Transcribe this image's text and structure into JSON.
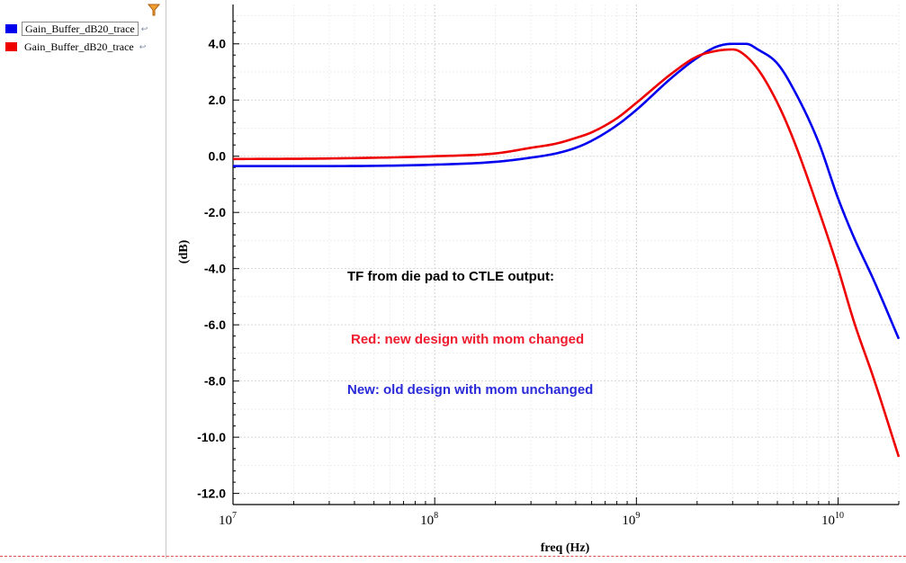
{
  "legend": {
    "items": [
      {
        "label": "Gain_Buffer_dB20_trace",
        "color": "#0000ee",
        "selected": true
      },
      {
        "label": "Gain_Buffer_dB20_trace",
        "color": "#ee0000",
        "selected": false
      }
    ],
    "filter_icon": "filter-icon"
  },
  "chart_data": {
    "type": "line",
    "xlabel": "freq (Hz)",
    "ylabel": "(dB)",
    "x_scale": "log",
    "xlim": [
      10000000.0,
      20000000000.0
    ],
    "ylim": [
      -12.3,
      5.4
    ],
    "y_ticks": [
      4,
      2,
      0,
      -2,
      -4,
      -6,
      -8,
      -10,
      -12
    ],
    "y_tick_labels": [
      "4.0",
      "2.0",
      "0.0",
      "-2.0",
      "-4.0",
      "-6.0",
      "-8.0",
      "-10.0",
      "-12.0"
    ],
    "x_ticks": [
      10000000.0,
      100000000.0,
      1000000000.0,
      10000000000.0
    ],
    "x_tick_labels": [
      {
        "base": "10",
        "exp": "7"
      },
      {
        "base": "10",
        "exp": "8"
      },
      {
        "base": "10",
        "exp": "9"
      },
      {
        "base": "10",
        "exp": "10"
      }
    ],
    "grid": true,
    "series": [
      {
        "color": "#0000ee",
        "x": [
          10000000.0,
          30000000.0,
          100000000.0,
          200000000.0,
          300000000.0,
          400000000.0,
          500000000.0,
          600000000.0,
          800000000.0,
          1000000000.0,
          1500000000.0,
          2000000000.0,
          2500000000.0,
          3000000000.0,
          3500000000.0,
          4000000000.0,
          5000000000.0,
          6000000000.0,
          8000000000.0,
          10000000000.0,
          12000000000.0,
          15000000000.0,
          20000000000.0
        ],
        "y": [
          -0.35,
          -0.35,
          -0.3,
          -0.2,
          -0.05,
          0.1,
          0.3,
          0.55,
          1.1,
          1.65,
          2.8,
          3.5,
          3.9,
          4.0,
          4.0,
          3.8,
          3.3,
          2.4,
          0.5,
          -1.5,
          -2.9,
          -4.4,
          -6.5
        ]
      },
      {
        "color": "#ee0000",
        "x": [
          10000000.0,
          30000000.0,
          100000000.0,
          200000000.0,
          300000000.0,
          400000000.0,
          500000000.0,
          600000000.0,
          800000000.0,
          1000000000.0,
          1500000000.0,
          2000000000.0,
          2500000000.0,
          3000000000.0,
          3300000000.0,
          4000000000.0,
          5000000000.0,
          6000000000.0,
          8000000000.0,
          10000000000.0,
          12000000000.0,
          15000000000.0,
          20000000000.0
        ],
        "y": [
          -0.1,
          -0.08,
          0.0,
          0.1,
          0.3,
          0.45,
          0.65,
          0.85,
          1.35,
          1.9,
          2.95,
          3.55,
          3.75,
          3.8,
          3.7,
          3.1,
          1.9,
          0.6,
          -1.9,
          -4.0,
          -5.9,
          -7.9,
          -10.7
        ]
      }
    ],
    "annotations": [
      {
        "text": "TF from die pad to CTLE output:",
        "color": "#000000"
      },
      {
        "text": "Red: new design with mom changed",
        "color": "#ee1c2e"
      },
      {
        "text": "New: old design with mom unchanged",
        "color": "#2a2ad8"
      }
    ]
  }
}
